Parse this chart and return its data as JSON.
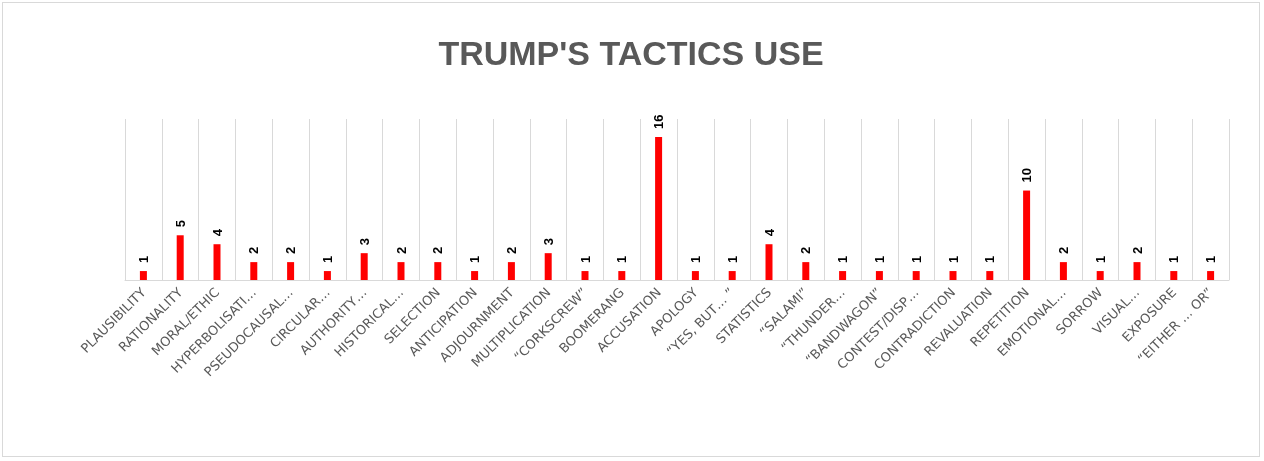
{
  "chart_data": {
    "type": "bar",
    "title": "TRUMP'S TACTICS USE",
    "categories": [
      "PLAUSIBILITY",
      "RATIONALITY",
      "MORAL/ETHIC",
      "HYPERBOLISATI…",
      "PSEUDOCAUSAL…",
      "CIRCULAR…",
      "AUTHORITY…",
      "HISTORICAL…",
      "SELECTION",
      "ANTICIPATION",
      "ADJOURNMENT",
      "MULTIPLICATION",
      "“CORKSCREW”",
      "BOOMERANG",
      "ACCUSATION",
      "APOLOGY",
      "“YES, BUT… ”",
      "STATISTICS",
      "“SALAMI”",
      "“THUNDER…",
      "“BANDWAGON”",
      "CONTEST/DISP…",
      "CONTRADICTION",
      "REVALUATION",
      "REPETITION",
      "EMOTIONAL…",
      "SORROW",
      "VISUAL…",
      "EXPOSURE",
      "“EITHER … OR”"
    ],
    "values": [
      1,
      5,
      4,
      2,
      2,
      1,
      3,
      2,
      2,
      1,
      2,
      3,
      1,
      1,
      16,
      1,
      1,
      4,
      2,
      1,
      1,
      1,
      1,
      1,
      10,
      2,
      1,
      2,
      1,
      1
    ],
    "color": "#ff0000",
    "data_labels": true,
    "grid": "x",
    "tick_labels": "x"
  }
}
